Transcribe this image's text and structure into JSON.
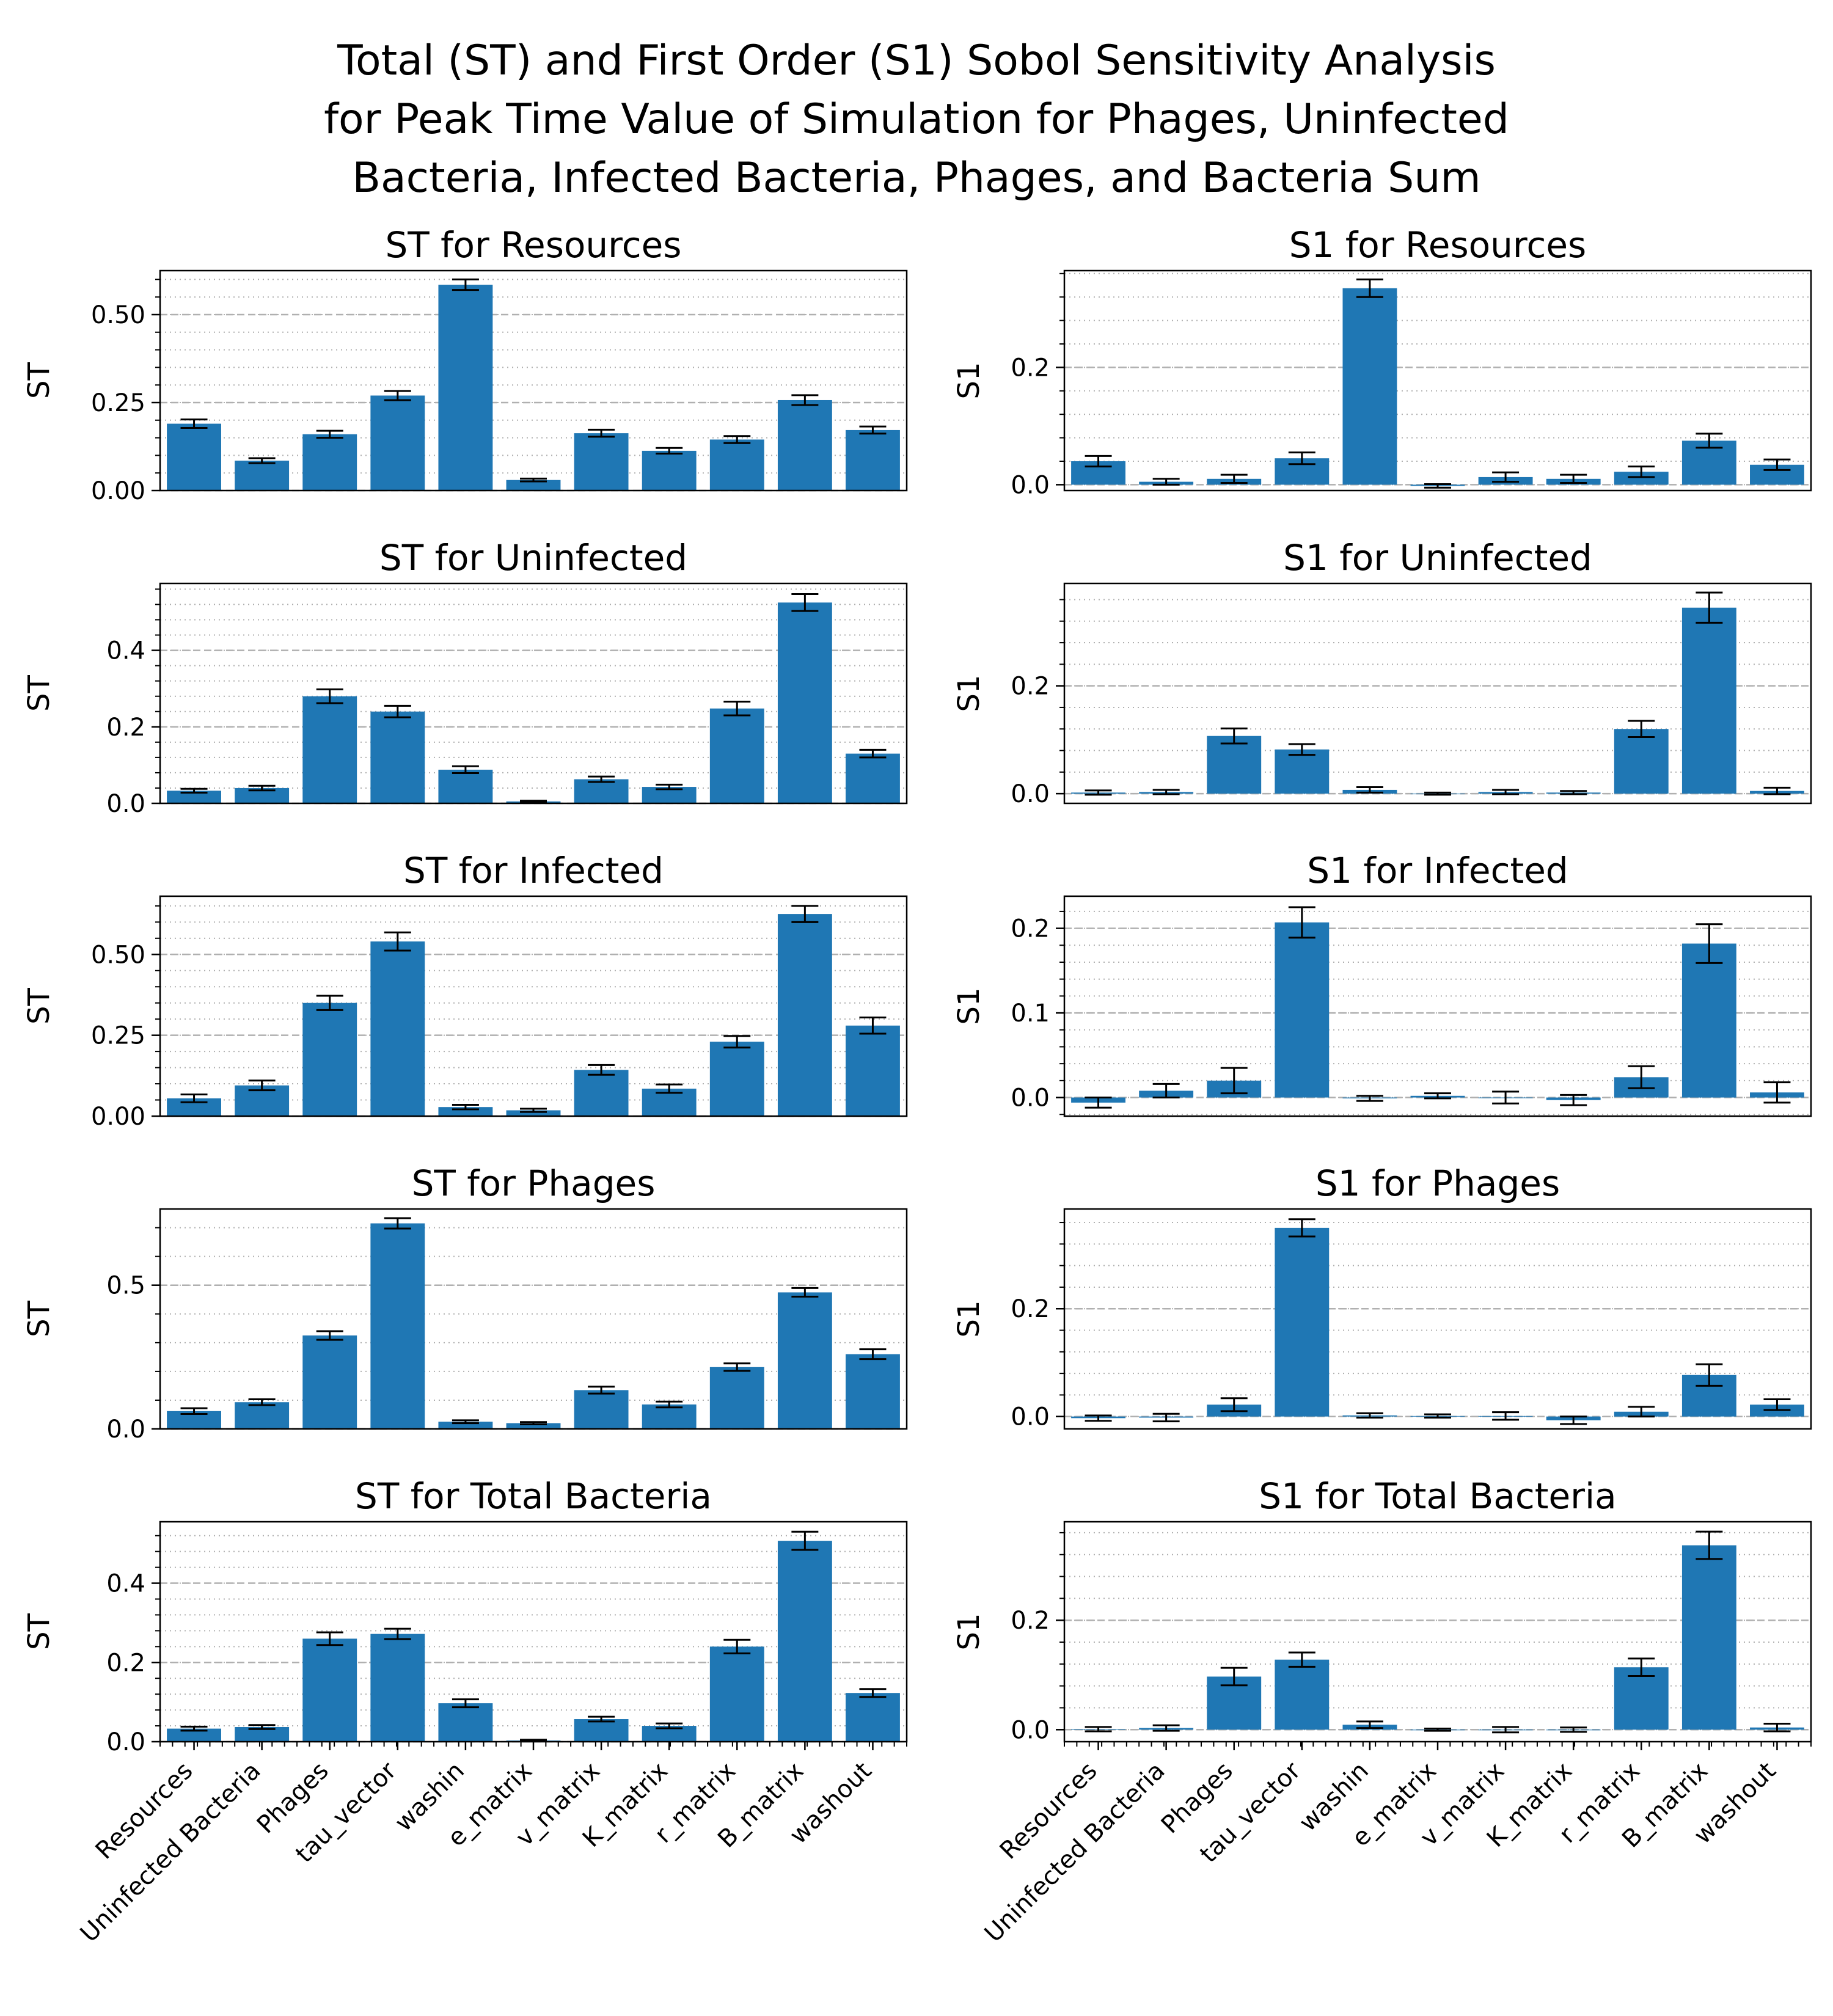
{
  "figure": {
    "title_lines": [
      "Total (ST) and First Order (S1) Sobol Sensitivity Analysis",
      "for Peak Time Value of Simulation for Phages, Uninfected",
      "Bacteria, Infected Bacteria, Phages, and Bacteria Sum"
    ],
    "bar_color": "#1f77b4",
    "errorbar_color": "#000000",
    "gridline_color": "#b0b0b0"
  },
  "chart_data": [
    {
      "type": "bar",
      "title": "ST for Resources",
      "xlabel": "",
      "ylabel": "ST",
      "categories": [
        "Resources",
        "Uninfected Bacteria",
        "Phages",
        "tau_vector",
        "washin",
        "e_matrix",
        "v_matrix",
        "K_matrix",
        "r_matrix",
        "B_matrix",
        "washout"
      ],
      "values": [
        0.19,
        0.085,
        0.16,
        0.27,
        0.585,
        0.03,
        0.163,
        0.113,
        0.145,
        0.257,
        0.172
      ],
      "errors": [
        0.012,
        0.007,
        0.01,
        0.013,
        0.015,
        0.004,
        0.01,
        0.008,
        0.01,
        0.014,
        0.01
      ],
      "ylim": [
        0,
        0.625
      ],
      "yticks": [
        0.0,
        0.25,
        0.5
      ],
      "ytick_labels": [
        "0.00",
        "0.25",
        "0.50"
      ],
      "show_xticklabels": false
    },
    {
      "type": "bar",
      "title": "S1 for Resources",
      "xlabel": "",
      "ylabel": "S1",
      "categories": [
        "Resources",
        "Uninfected Bacteria",
        "Phages",
        "tau_vector",
        "washin",
        "e_matrix",
        "v_matrix",
        "K_matrix",
        "r_matrix",
        "B_matrix",
        "washout"
      ],
      "values": [
        0.04,
        0.005,
        0.01,
        0.045,
        0.335,
        -0.002,
        0.013,
        0.01,
        0.022,
        0.075,
        0.034
      ],
      "errors": [
        0.009,
        0.005,
        0.007,
        0.01,
        0.015,
        0.003,
        0.008,
        0.007,
        0.009,
        0.012,
        0.009
      ],
      "ylim": [
        -0.01,
        0.365
      ],
      "yticks": [
        0.0,
        0.2
      ],
      "ytick_labels": [
        "0.0",
        "0.2"
      ],
      "show_xticklabels": false
    },
    {
      "type": "bar",
      "title": "ST for Uninfected",
      "xlabel": "",
      "ylabel": "ST",
      "categories": [
        "Resources",
        "Uninfected Bacteria",
        "Phages",
        "tau_vector",
        "washin",
        "e_matrix",
        "v_matrix",
        "K_matrix",
        "r_matrix",
        "B_matrix",
        "washout"
      ],
      "values": [
        0.033,
        0.04,
        0.28,
        0.24,
        0.088,
        0.005,
        0.063,
        0.043,
        0.248,
        0.525,
        0.13
      ],
      "errors": [
        0.005,
        0.006,
        0.018,
        0.015,
        0.009,
        0.002,
        0.007,
        0.006,
        0.018,
        0.022,
        0.01
      ],
      "ylim": [
        0,
        0.575
      ],
      "yticks": [
        0.0,
        0.2,
        0.4
      ],
      "ytick_labels": [
        "0.0",
        "0.2",
        "0.4"
      ],
      "show_xticklabels": false
    },
    {
      "type": "bar",
      "title": "S1 for Uninfected",
      "xlabel": "",
      "ylabel": "S1",
      "categories": [
        "Resources",
        "Uninfected Bacteria",
        "Phages",
        "tau_vector",
        "washin",
        "e_matrix",
        "v_matrix",
        "K_matrix",
        "r_matrix",
        "B_matrix",
        "washout"
      ],
      "values": [
        0.002,
        0.003,
        0.107,
        0.082,
        0.007,
        0.0,
        0.003,
        0.002,
        0.12,
        0.345,
        0.005
      ],
      "errors": [
        0.004,
        0.004,
        0.014,
        0.01,
        0.005,
        0.002,
        0.004,
        0.003,
        0.015,
        0.028,
        0.006
      ],
      "ylim": [
        -0.018,
        0.39
      ],
      "yticks": [
        0.0,
        0.2
      ],
      "ytick_labels": [
        "0.0",
        "0.2"
      ],
      "show_xticklabels": false
    },
    {
      "type": "bar",
      "title": "ST for Infected",
      "xlabel": "",
      "ylabel": "ST",
      "categories": [
        "Resources",
        "Uninfected Bacteria",
        "Phages",
        "tau_vector",
        "washin",
        "e_matrix",
        "v_matrix",
        "K_matrix",
        "r_matrix",
        "B_matrix",
        "washout"
      ],
      "values": [
        0.055,
        0.095,
        0.35,
        0.54,
        0.028,
        0.018,
        0.143,
        0.085,
        0.23,
        0.625,
        0.28
      ],
      "errors": [
        0.012,
        0.015,
        0.022,
        0.028,
        0.007,
        0.005,
        0.015,
        0.013,
        0.018,
        0.025,
        0.025
      ],
      "ylim": [
        0,
        0.68
      ],
      "yticks": [
        0.0,
        0.25,
        0.5
      ],
      "ytick_labels": [
        "0.00",
        "0.25",
        "0.50"
      ],
      "show_xticklabels": false
    },
    {
      "type": "bar",
      "title": "S1 for Infected",
      "xlabel": "",
      "ylabel": "S1",
      "categories": [
        "Resources",
        "Uninfected Bacteria",
        "Phages",
        "tau_vector",
        "washin",
        "e_matrix",
        "v_matrix",
        "K_matrix",
        "r_matrix",
        "B_matrix",
        "washout"
      ],
      "values": [
        -0.006,
        0.008,
        0.02,
        0.207,
        -0.001,
        0.002,
        0.0,
        -0.003,
        0.024,
        0.182,
        0.006
      ],
      "errors": [
        0.006,
        0.008,
        0.015,
        0.018,
        0.003,
        0.003,
        0.007,
        0.006,
        0.013,
        0.023,
        0.012
      ],
      "ylim": [
        -0.022,
        0.238
      ],
      "yticks": [
        0.0,
        0.1,
        0.2
      ],
      "ytick_labels": [
        "0.0",
        "0.1",
        "0.2"
      ],
      "show_xticklabels": false
    },
    {
      "type": "bar",
      "title": "ST for Phages",
      "xlabel": "",
      "ylabel": "ST",
      "categories": [
        "Resources",
        "Uninfected Bacteria",
        "Phages",
        "tau_vector",
        "washin",
        "e_matrix",
        "v_matrix",
        "K_matrix",
        "r_matrix",
        "B_matrix",
        "washout"
      ],
      "values": [
        0.062,
        0.093,
        0.325,
        0.715,
        0.025,
        0.02,
        0.135,
        0.085,
        0.215,
        0.475,
        0.26
      ],
      "errors": [
        0.01,
        0.01,
        0.015,
        0.018,
        0.005,
        0.004,
        0.012,
        0.01,
        0.013,
        0.015,
        0.017
      ],
      "ylim": [
        0,
        0.765
      ],
      "yticks": [
        0.0,
        0.5
      ],
      "ytick_labels": [
        "0.0",
        "0.5"
      ],
      "show_xticklabels": false
    },
    {
      "type": "bar",
      "title": "S1 for Phages",
      "xlabel": "",
      "ylabel": "S1",
      "categories": [
        "Resources",
        "Uninfected Bacteria",
        "Phages",
        "tau_vector",
        "washin",
        "e_matrix",
        "v_matrix",
        "K_matrix",
        "r_matrix",
        "B_matrix",
        "washout"
      ],
      "values": [
        -0.003,
        -0.002,
        0.022,
        0.35,
        0.002,
        0.001,
        0.001,
        -0.007,
        0.009,
        0.077,
        0.022
      ],
      "errors": [
        0.005,
        0.007,
        0.012,
        0.016,
        0.004,
        0.003,
        0.007,
        0.007,
        0.009,
        0.02,
        0.01
      ],
      "ylim": [
        -0.023,
        0.385
      ],
      "yticks": [
        0.0,
        0.2
      ],
      "ytick_labels": [
        "0.0",
        "0.2"
      ],
      "show_xticklabels": false
    },
    {
      "type": "bar",
      "title": "ST for Total Bacteria",
      "xlabel": "",
      "ylabel": "ST",
      "categories": [
        "Resources",
        "Uninfected Bacteria",
        "Phages",
        "tau_vector",
        "washin",
        "e_matrix",
        "v_matrix",
        "K_matrix",
        "r_matrix",
        "B_matrix",
        "washout"
      ],
      "values": [
        0.033,
        0.037,
        0.26,
        0.272,
        0.097,
        0.003,
        0.057,
        0.04,
        0.24,
        0.507,
        0.123
      ],
      "errors": [
        0.005,
        0.005,
        0.016,
        0.013,
        0.01,
        0.002,
        0.006,
        0.006,
        0.017,
        0.023,
        0.01
      ],
      "ylim": [
        0,
        0.555
      ],
      "yticks": [
        0.0,
        0.2,
        0.4
      ],
      "ytick_labels": [
        "0.0",
        "0.2",
        "0.4"
      ],
      "show_xticklabels": true
    },
    {
      "type": "bar",
      "title": "S1 for Total Bacteria",
      "xlabel": "",
      "ylabel": "S1",
      "categories": [
        "Resources",
        "Uninfected Bacteria",
        "Phages",
        "tau_vector",
        "washin",
        "e_matrix",
        "v_matrix",
        "K_matrix",
        "r_matrix",
        "B_matrix",
        "washout"
      ],
      "values": [
        0.001,
        0.003,
        0.097,
        0.128,
        0.009,
        0.0,
        0.0,
        0.0,
        0.114,
        0.337,
        0.004
      ],
      "errors": [
        0.004,
        0.005,
        0.016,
        0.013,
        0.006,
        0.002,
        0.005,
        0.004,
        0.016,
        0.025,
        0.007
      ],
      "ylim": [
        -0.022,
        0.38
      ],
      "yticks": [
        0.0,
        0.2
      ],
      "ytick_labels": [
        "0.0",
        "0.2"
      ],
      "show_xticklabels": true
    }
  ]
}
